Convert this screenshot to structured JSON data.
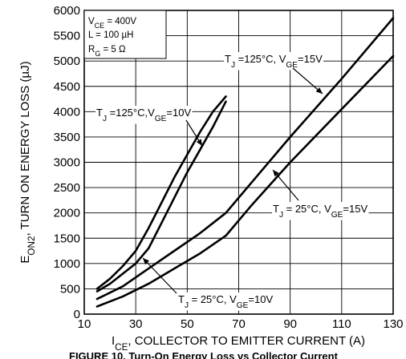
{
  "chart_data": {
    "type": "line",
    "xlabel": {
      "main": "I",
      "sub": "CE",
      "rest": ", COLLECTOR TO EMITTER CURRENT (A)"
    },
    "ylabel": {
      "main": "E",
      "sub": "ON2",
      "rest": ", TURN ON ENERGY LOSS (µJ)"
    },
    "xlim": [
      10,
      130
    ],
    "ylim": [
      0,
      6000
    ],
    "x_ticks": [
      10,
      30,
      50,
      70,
      90,
      110,
      130
    ],
    "y_ticks": [
      0,
      500,
      1000,
      1500,
      2000,
      2500,
      3000,
      3500,
      4000,
      4500,
      5000,
      5500,
      6000
    ],
    "grid": true,
    "caption": "FIGURE 10. Turn-On Energy Loss vs Collector Current",
    "conditions": [
      {
        "main": "V",
        "sub": "CE",
        "rest": " =  400V"
      },
      {
        "main": "L = 100 µH",
        "sub": "",
        "rest": ""
      },
      {
        "main": "R",
        "sub": "G",
        "rest": " = 5 Ω"
      }
    ],
    "series": [
      {
        "label_parts": [
          [
            "T",
            ""
          ],
          [
            "J",
            "sub"
          ],
          [
            " =125°C,V",
            ""
          ],
          [
            "GE",
            "sub"
          ],
          [
            "=10V",
            ""
          ]
        ],
        "x": [
          15,
          20,
          25,
          30,
          35,
          40,
          45,
          50,
          55,
          60,
          65
        ],
        "y": [
          500,
          700,
          950,
          1250,
          1700,
          2200,
          2700,
          3150,
          3600,
          4000,
          4300
        ]
      },
      {
        "label_parts": [
          [
            "T",
            ""
          ],
          [
            "J",
            "sub"
          ],
          [
            " = 25°C, V",
            ""
          ],
          [
            "GE",
            "sub"
          ],
          [
            "=10V",
            ""
          ]
        ],
        "x": [
          15,
          20,
          25,
          30,
          35,
          40,
          45,
          50,
          55,
          60,
          65
        ],
        "y": [
          450,
          600,
          800,
          1000,
          1300,
          1800,
          2300,
          2800,
          3250,
          3700,
          4200
        ]
      },
      {
        "label_parts": [
          [
            "T",
            ""
          ],
          [
            "J",
            "sub"
          ],
          [
            " =125°C, V",
            ""
          ],
          [
            "GE",
            "sub"
          ],
          [
            "=15V",
            ""
          ]
        ],
        "x": [
          15,
          25,
          35,
          45,
          55,
          65,
          75,
          90,
          110,
          130
        ],
        "y": [
          300,
          550,
          900,
          1250,
          1600,
          2000,
          2600,
          3500,
          4650,
          5850
        ]
      },
      {
        "label_parts": [
          [
            "T",
            ""
          ],
          [
            "J",
            "sub"
          ],
          [
            " = 25°C, V",
            ""
          ],
          [
            "GE",
            "sub"
          ],
          [
            "=15V",
            ""
          ]
        ],
        "x": [
          15,
          25,
          35,
          45,
          55,
          65,
          75,
          90,
          110,
          130
        ],
        "y": [
          150,
          350,
          600,
          900,
          1200,
          1550,
          2150,
          3000,
          4050,
          5100
        ]
      }
    ]
  }
}
